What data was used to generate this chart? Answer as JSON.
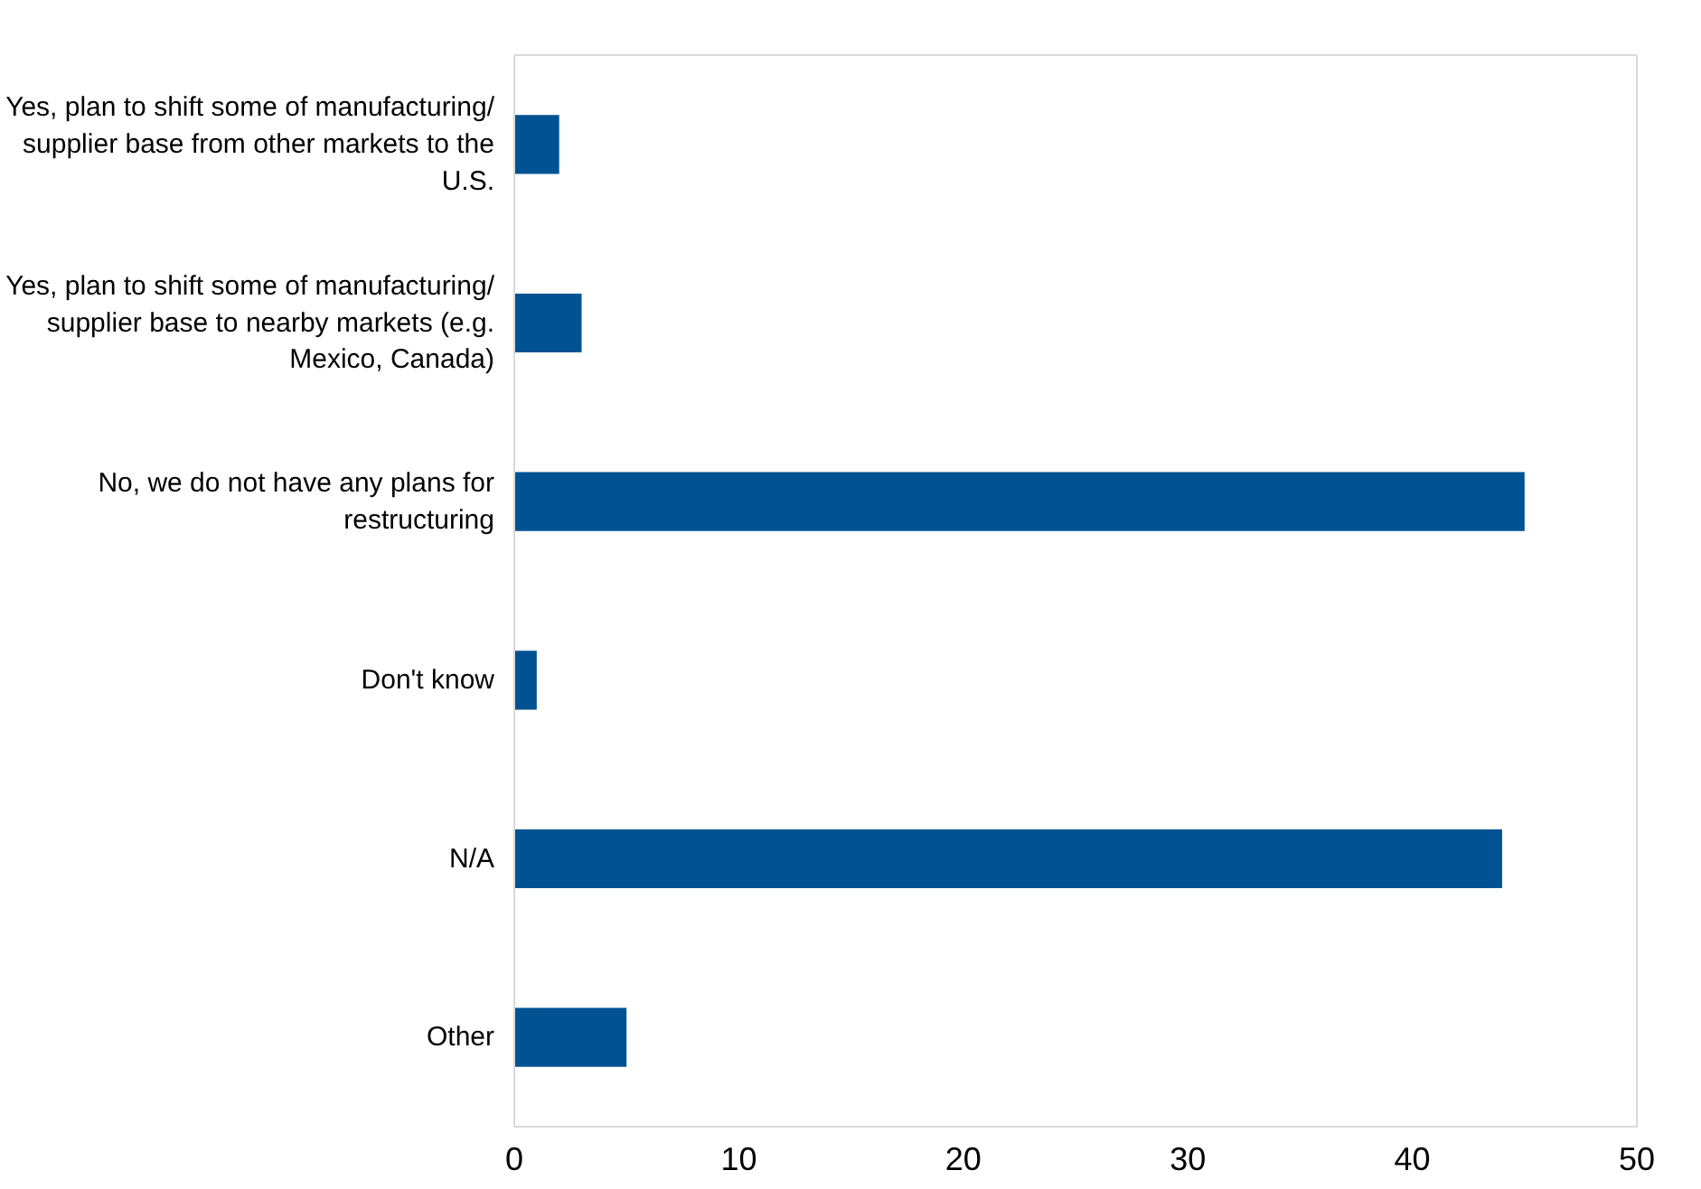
{
  "chart_data": {
    "type": "bar",
    "orientation": "horizontal",
    "categories": [
      "Yes, plan to shift some of manufacturing/ supplier base from other markets to the U.S.",
      "Yes, plan to shift some of manufacturing/ supplier base to nearby markets (e.g. Mexico, Canada)",
      "No, we do not have any plans for restructuring",
      "Don't know",
      "N/A",
      "Other"
    ],
    "values": [
      2,
      3,
      45,
      1,
      44,
      5
    ],
    "color": "#005293",
    "xlim": [
      0,
      50
    ],
    "xticks": [
      0,
      10,
      20,
      30,
      40,
      50
    ],
    "grid": false
  }
}
